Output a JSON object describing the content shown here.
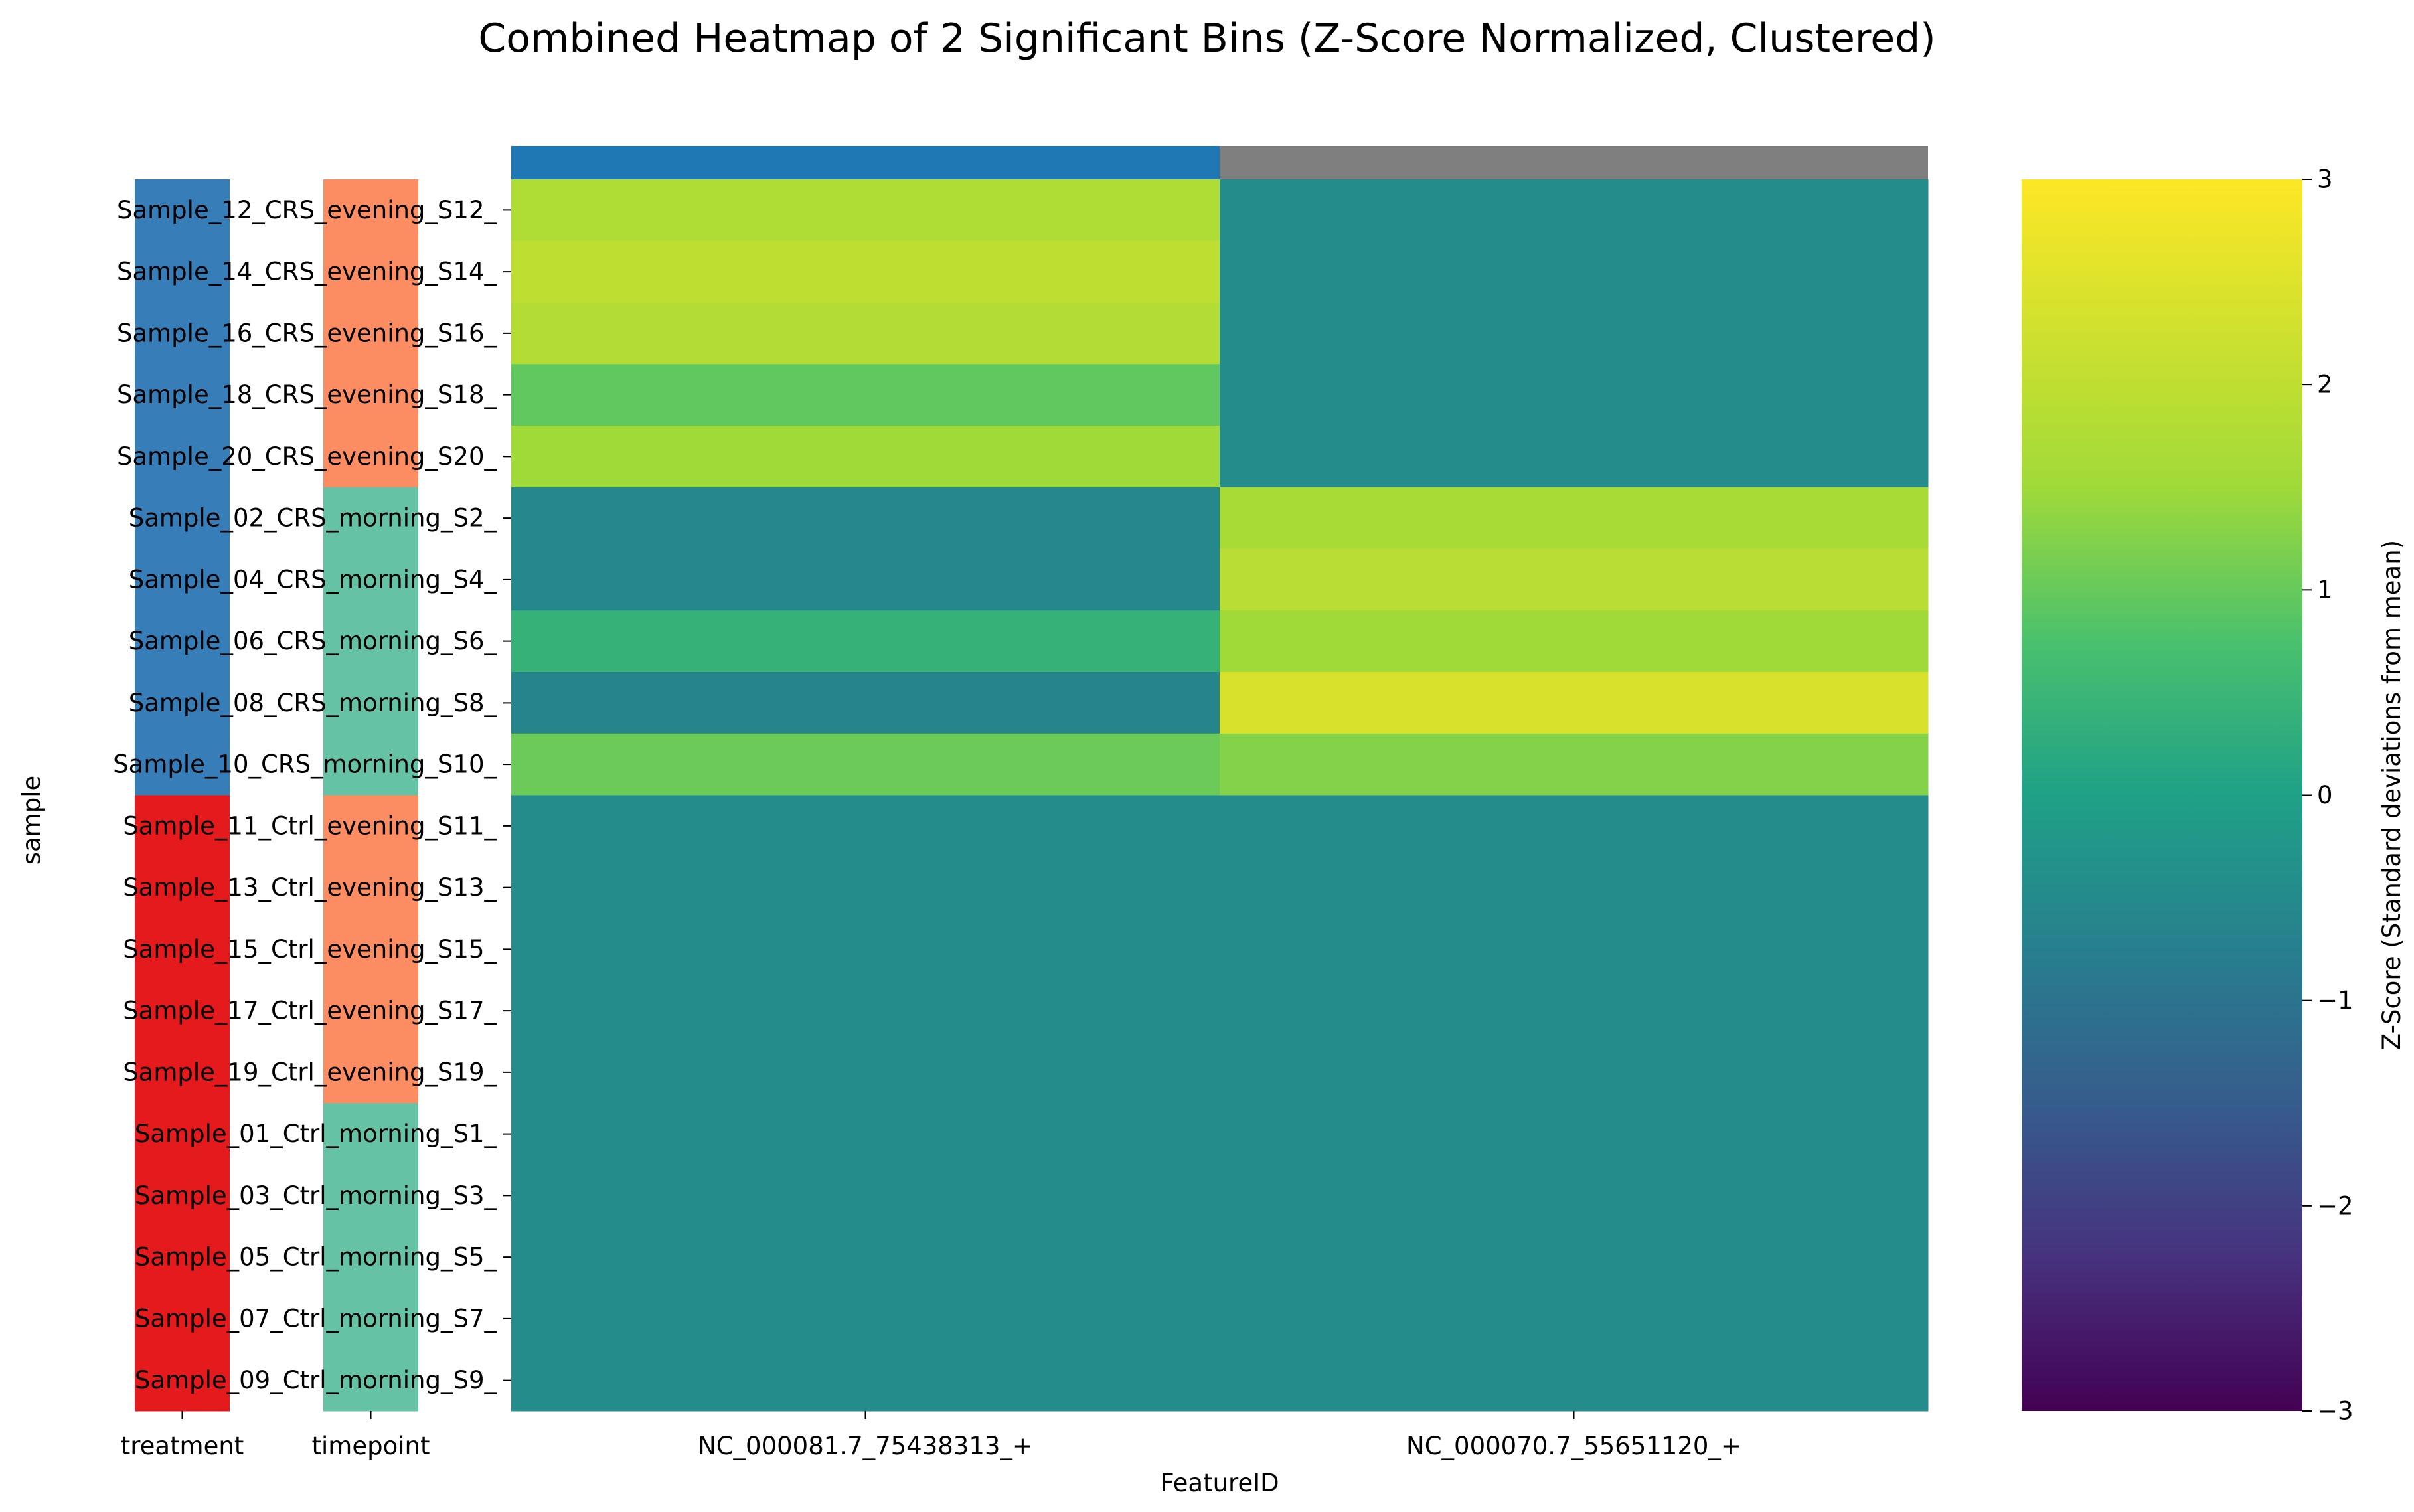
{
  "chart_data": {
    "type": "heatmap",
    "title": "Combined Heatmap of 2 Significant Bins (Z-Score Normalized, Clustered)",
    "xlabel": "FeatureID",
    "ylabel": "sample",
    "columns": [
      "NC_000081.7_75438313_+",
      "NC_000070.7_55651120_+"
    ],
    "column_colors": [
      "#1f77b4",
      "#7f7f7f"
    ],
    "annotation_tracks": [
      "treatment",
      "timepoint"
    ],
    "annotation_colors": {
      "treatment": {
        "CRS": "#377eb8",
        "Ctrl": "#e41a1c"
      },
      "timepoint": {
        "evening": "#fc8d62",
        "morning": "#66c2a5"
      }
    },
    "rows": [
      {
        "label": "Sample_12_CRS_evening_S12_",
        "treatment": "CRS",
        "timepoint": "evening",
        "values": [
          1.75,
          -0.45
        ]
      },
      {
        "label": "Sample_14_CRS_evening_S14_",
        "treatment": "CRS",
        "timepoint": "evening",
        "values": [
          2.0,
          -0.45
        ]
      },
      {
        "label": "Sample_16_CRS_evening_S16_",
        "treatment": "CRS",
        "timepoint": "evening",
        "values": [
          1.8,
          -0.45
        ]
      },
      {
        "label": "Sample_18_CRS_evening_S18_",
        "treatment": "CRS",
        "timepoint": "evening",
        "values": [
          0.95,
          -0.45
        ]
      },
      {
        "label": "Sample_20_CRS_evening_S20_",
        "treatment": "CRS",
        "timepoint": "evening",
        "values": [
          1.5,
          -0.45
        ]
      },
      {
        "label": "Sample_02_CRS_morning_S2_",
        "treatment": "CRS",
        "timepoint": "morning",
        "values": [
          -0.55,
          1.65
        ]
      },
      {
        "label": "Sample_04_CRS_morning_S4_",
        "treatment": "CRS",
        "timepoint": "morning",
        "values": [
          -0.55,
          1.9
        ]
      },
      {
        "label": "Sample_06_CRS_morning_S6_",
        "treatment": "CRS",
        "timepoint": "morning",
        "values": [
          0.4,
          1.5
        ]
      },
      {
        "label": "Sample_08_CRS_morning_S8_",
        "treatment": "CRS",
        "timepoint": "morning",
        "values": [
          -0.65,
          2.4
        ]
      },
      {
        "label": "Sample_10_CRS_morning_S10_",
        "treatment": "CRS",
        "timepoint": "morning",
        "values": [
          1.05,
          1.25
        ]
      },
      {
        "label": "Sample_11_Ctrl_evening_S11_",
        "treatment": "Ctrl",
        "timepoint": "evening",
        "values": [
          -0.45,
          -0.45
        ]
      },
      {
        "label": "Sample_13_Ctrl_evening_S13_",
        "treatment": "Ctrl",
        "timepoint": "evening",
        "values": [
          -0.45,
          -0.45
        ]
      },
      {
        "label": "Sample_15_Ctrl_evening_S15_",
        "treatment": "Ctrl",
        "timepoint": "evening",
        "values": [
          -0.45,
          -0.45
        ]
      },
      {
        "label": "Sample_17_Ctrl_evening_S17_",
        "treatment": "Ctrl",
        "timepoint": "evening",
        "values": [
          -0.45,
          -0.45
        ]
      },
      {
        "label": "Sample_19_Ctrl_evening_S19_",
        "treatment": "Ctrl",
        "timepoint": "evening",
        "values": [
          -0.45,
          -0.45
        ]
      },
      {
        "label": "Sample_01_Ctrl_morning_S1_",
        "treatment": "Ctrl",
        "timepoint": "morning",
        "values": [
          -0.45,
          -0.45
        ]
      },
      {
        "label": "Sample_03_Ctrl_morning_S3_",
        "treatment": "Ctrl",
        "timepoint": "morning",
        "values": [
          -0.45,
          -0.45
        ]
      },
      {
        "label": "Sample_05_Ctrl_morning_S5_",
        "treatment": "Ctrl",
        "timepoint": "morning",
        "values": [
          -0.45,
          -0.45
        ]
      },
      {
        "label": "Sample_07_Ctrl_morning_S7_",
        "treatment": "Ctrl",
        "timepoint": "morning",
        "values": [
          -0.45,
          -0.45
        ]
      },
      {
        "label": "Sample_09_Ctrl_morning_S9_",
        "treatment": "Ctrl",
        "timepoint": "morning",
        "values": [
          -0.45,
          -0.45
        ]
      }
    ],
    "colorbar": {
      "label": "Z-Score (Standard deviations from mean)",
      "colormap": "viridis",
      "range": [
        -3,
        3
      ],
      "ticks": [
        3,
        2,
        1,
        0,
        -1,
        -2,
        -3
      ],
      "tick_labels": [
        "3",
        "2",
        "1",
        "0",
        "−1",
        "−2",
        "−3"
      ]
    },
    "grid": false
  }
}
